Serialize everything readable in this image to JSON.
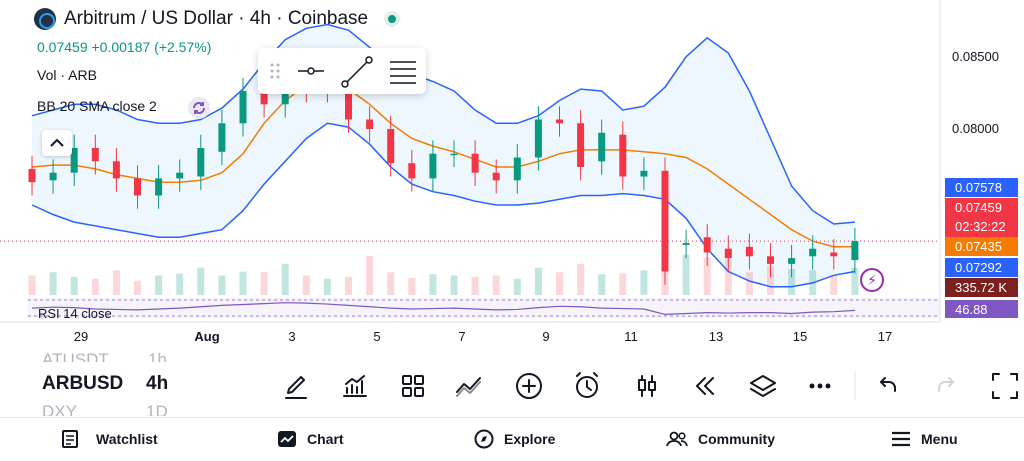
{
  "header": {
    "title": "Arbitrum / US Dollar · 4h · Coinbase",
    "quote": "0.07459 +0.00187 (+2.57%)",
    "vol_label": "Vol · ARB",
    "bb_label": "BB 20 SMA close 2",
    "rsi_label": "RSI 14 close"
  },
  "price_axis": [
    "0.08500",
    "0.08000"
  ],
  "price_labels": [
    {
      "text": "0.07578",
      "color": "#2962ff"
    },
    {
      "text": "0.07459",
      "sub": "02:32:22",
      "color": "#f23645"
    },
    {
      "text": "0.07435",
      "color": "#f57c00"
    },
    {
      "text": "0.07292",
      "color": "#2962ff"
    },
    {
      "text": "335.72 K",
      "color": "#7b1f1f"
    },
    {
      "text": "46.88",
      "color": "#7e57c2"
    }
  ],
  "time_axis": [
    "29",
    "Aug",
    "3",
    "5",
    "7",
    "9",
    "11",
    "13",
    "15",
    "17"
  ],
  "symbols": {
    "prev": "ATUSDT",
    "current": "ARBUSD",
    "next": "DXY",
    "interval_prev": "1h",
    "interval": "4h",
    "interval_next": "1D"
  },
  "toolbar": [
    "draw-icon",
    "indicators-icon",
    "layout-icon",
    "compare-icon",
    "add-icon",
    "alert-icon",
    "chart-type-icon",
    "replay-icon",
    "layers-icon",
    "more-icon",
    "undo-icon",
    "redo-icon",
    "fullscreen-icon"
  ],
  "nav": {
    "watchlist": "Watchlist",
    "chart": "Chart",
    "explore": "Explore",
    "community": "Community",
    "menu": "Menu"
  },
  "colors": {
    "up": "#089981",
    "down": "#f23645",
    "bb_band": "#2962ff",
    "bb_basis": "#f57c00",
    "rsi": "#7e57c2"
  },
  "chart_data": {
    "type": "candlestick",
    "ylim": [
      0.0715,
      0.0865
    ],
    "bb_upper": [
      0.0812,
      0.0815,
      0.0818,
      0.0818,
      0.0815,
      0.081,
      0.0808,
      0.0808,
      0.081,
      0.0816,
      0.0826,
      0.084,
      0.0852,
      0.0858,
      0.086,
      0.0857,
      0.0848,
      0.084,
      0.0834,
      0.083,
      0.0825,
      0.0815,
      0.0808,
      0.0808,
      0.0812,
      0.082,
      0.0826,
      0.0825,
      0.0815,
      0.0817,
      0.0827,
      0.0843,
      0.0853,
      0.0845,
      0.0825,
      0.08,
      0.0775,
      0.0762,
      0.0755,
      0.0756
    ],
    "bb_basis": [
      0.0785,
      0.0786,
      0.0786,
      0.0784,
      0.0781,
      0.0779,
      0.0777,
      0.0777,
      0.0778,
      0.0782,
      0.0792,
      0.0808,
      0.082,
      0.0828,
      0.083,
      0.0826,
      0.0818,
      0.0808,
      0.08,
      0.0796,
      0.0793,
      0.0789,
      0.0785,
      0.0785,
      0.0788,
      0.0792,
      0.0794,
      0.0794,
      0.0794,
      0.0793,
      0.0792,
      0.079,
      0.0784,
      0.0776,
      0.0768,
      0.076,
      0.0752,
      0.0746,
      0.0743,
      0.0743
    ],
    "bb_lower": [
      0.0765,
      0.076,
      0.0756,
      0.0754,
      0.0752,
      0.075,
      0.0748,
      0.0748,
      0.075,
      0.0752,
      0.0762,
      0.0776,
      0.0788,
      0.08,
      0.0808,
      0.0806,
      0.0797,
      0.0785,
      0.0776,
      0.0772,
      0.077,
      0.0767,
      0.0765,
      0.0765,
      0.0766,
      0.0768,
      0.077,
      0.077,
      0.0771,
      0.077,
      0.0768,
      0.0758,
      0.0742,
      0.073,
      0.0725,
      0.0722,
      0.0722,
      0.0724,
      0.0728,
      0.073
    ],
    "candles": [
      [
        0.0784,
        0.0777
      ],
      [
        0.0778,
        0.0782
      ],
      [
        0.0782,
        0.0795
      ],
      [
        0.0795,
        0.0788
      ],
      [
        0.0788,
        0.0779
      ],
      [
        0.0779,
        0.077
      ],
      [
        0.077,
        0.0779
      ],
      [
        0.0779,
        0.0782
      ],
      [
        0.078,
        0.0795
      ],
      [
        0.0793,
        0.0808
      ],
      [
        0.0808,
        0.0825
      ],
      [
        0.0825,
        0.0818
      ],
      [
        0.0818,
        0.0836
      ],
      [
        0.0836,
        0.0826
      ],
      [
        0.0826,
        0.083
      ],
      [
        0.083,
        0.081
      ],
      [
        0.081,
        0.0805
      ],
      [
        0.0805,
        0.0787
      ],
      [
        0.0787,
        0.0779
      ],
      [
        0.0779,
        0.0792
      ],
      [
        0.0792,
        0.0792
      ],
      [
        0.0792,
        0.0782
      ],
      [
        0.0782,
        0.0778
      ],
      [
        0.0778,
        0.079
      ],
      [
        0.079,
        0.081
      ],
      [
        0.081,
        0.0808
      ],
      [
        0.0808,
        0.0785
      ],
      [
        0.0788,
        0.0803
      ],
      [
        0.0802,
        0.078
      ],
      [
        0.078,
        0.0783
      ],
      [
        0.0783,
        0.073
      ],
      [
        0.0744,
        0.0745
      ],
      [
        0.0748,
        0.074
      ],
      [
        0.0742,
        0.0737
      ],
      [
        0.0743,
        0.0738
      ],
      [
        0.0738,
        0.0734
      ],
      [
        0.0734,
        0.0737
      ],
      [
        0.0738,
        0.0742
      ],
      [
        0.074,
        0.0738
      ],
      [
        0.0736,
        0.0746
      ]
    ],
    "volume": [
      0.3,
      0.35,
      0.28,
      0.25,
      0.38,
      0.22,
      0.3,
      0.33,
      0.42,
      0.3,
      0.36,
      0.35,
      0.48,
      0.3,
      0.25,
      0.28,
      0.6,
      0.35,
      0.26,
      0.32,
      0.3,
      0.28,
      0.3,
      0.25,
      0.42,
      0.35,
      0.48,
      0.32,
      0.33,
      0.38,
      0.7,
      0.62,
      0.58,
      0.55,
      0.35,
      0.45,
      0.4,
      0.38,
      0.3,
      0.42
    ],
    "rsi": [
      52,
      54,
      53,
      50,
      49,
      48,
      50,
      52,
      55,
      58,
      60,
      62,
      64,
      63,
      61,
      58,
      55,
      52,
      50,
      51,
      52,
      50,
      48,
      49,
      53,
      56,
      55,
      52,
      51,
      50,
      38,
      40,
      42,
      41,
      42,
      42,
      40,
      43,
      44,
      47
    ]
  }
}
